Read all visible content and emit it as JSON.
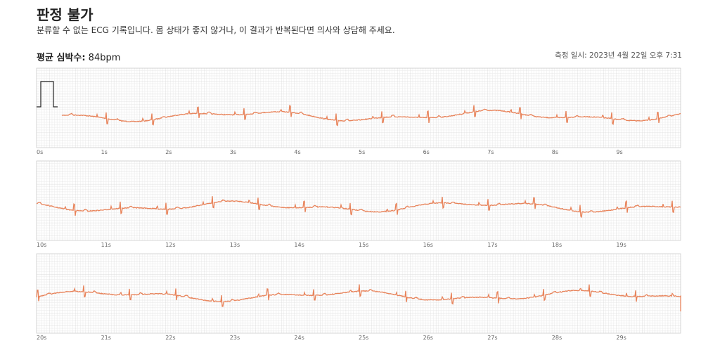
{
  "header": {
    "title": "판정 불가",
    "description": "분류할 수 없는 ECG 기록입니다. 몸 상태가 좋지 않거나, 이 결과가 반복된다면 의사와 상담해 주세요."
  },
  "summary": {
    "label": "평균 심박수:",
    "value": "84bpm",
    "measured_at": "측정 일시: 2023년 4월 22일 오후 7:31"
  },
  "strips": [
    {
      "ticks": [
        "0s",
        "1s",
        "2s",
        "3s",
        "4s",
        "5s",
        "6s",
        "7s",
        "8s",
        "9s"
      ]
    },
    {
      "ticks": [
        "10s",
        "11s",
        "12s",
        "13s",
        "14s",
        "15s",
        "16s",
        "17s",
        "18s",
        "19s"
      ]
    },
    {
      "ticks": [
        "20s",
        "21s",
        "22s",
        "23s",
        "24s",
        "25s",
        "26s",
        "27s",
        "28s",
        "29s"
      ]
    }
  ]
}
